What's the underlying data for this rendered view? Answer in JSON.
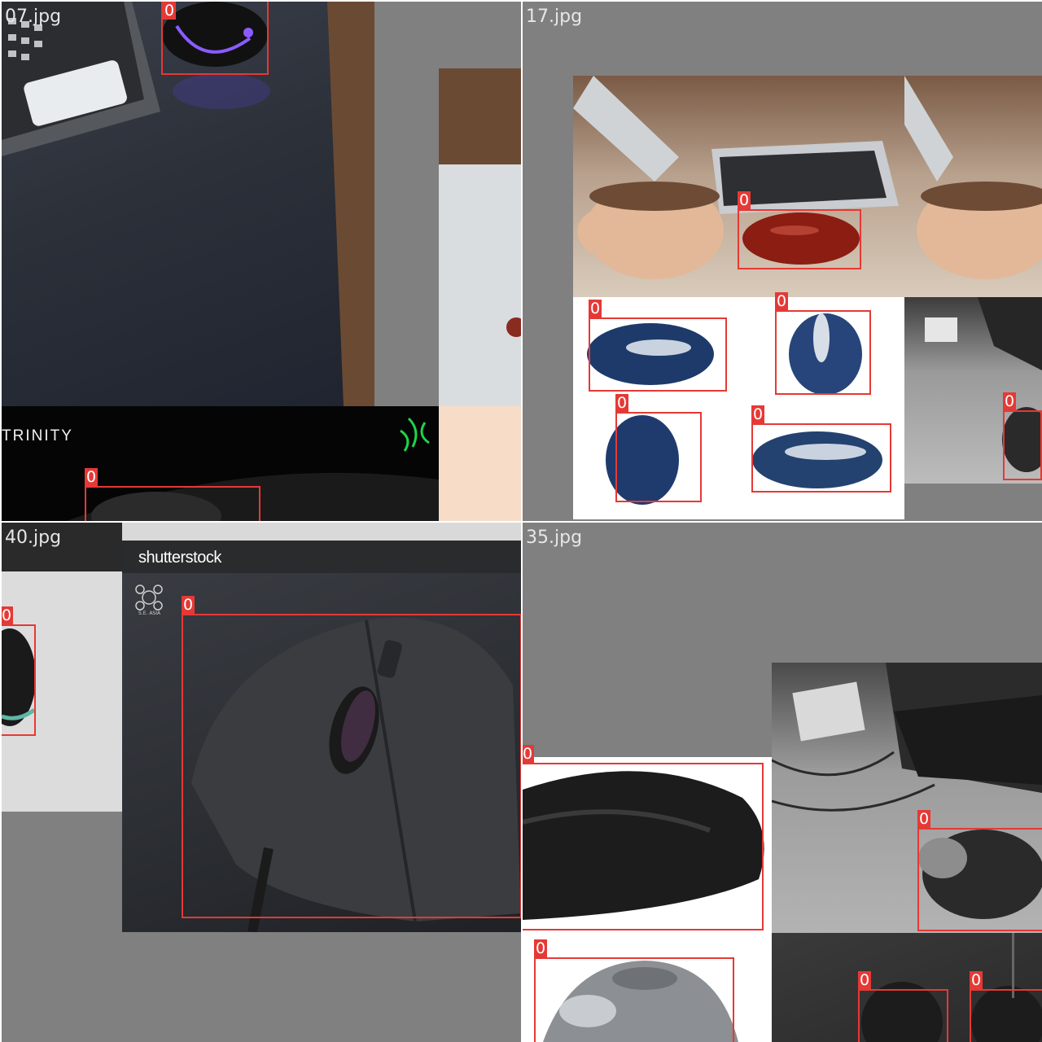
{
  "mosaic": {
    "quadrants": [
      {
        "filename": "07.jpg",
        "box_labels": [
          "0",
          "0"
        ],
        "overlay_text": "TRINITY"
      },
      {
        "filename": "17.jpg",
        "box_labels": [
          "0",
          "0",
          "0",
          "0",
          "0",
          "0"
        ]
      },
      {
        "filename": "40.jpg",
        "box_labels": [
          "0",
          "0"
        ],
        "watermark": "shutterstock",
        "logo_caption": "S.E. ASIA"
      },
      {
        "filename": "35.jpg",
        "box_labels": [
          "0",
          "0",
          "0",
          "0",
          "0"
        ]
      }
    ]
  },
  "colors": {
    "box": "#e53935",
    "padding": "#808080"
  }
}
